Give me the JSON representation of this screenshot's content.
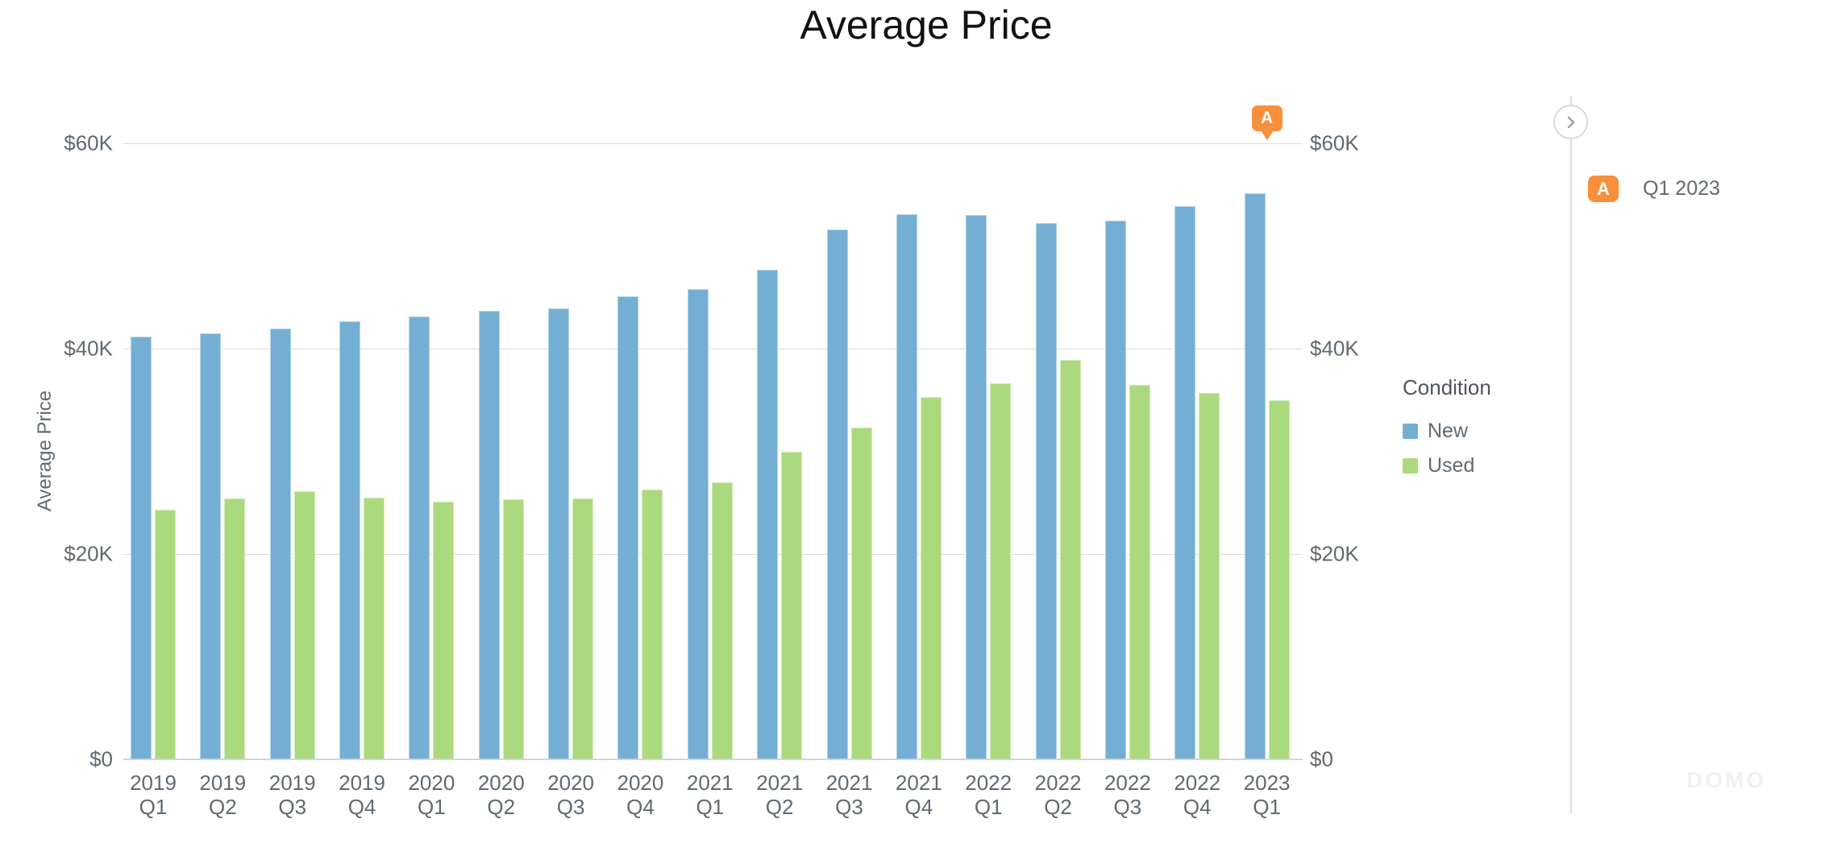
{
  "title": "Average Price",
  "colors": {
    "new_bar": "#74afd3",
    "used_bar": "#abda7e",
    "annotation_accent": "#f78f3d",
    "gridline": "#dcdcdc",
    "axis_text": "#5f6a73"
  },
  "chart_data": {
    "type": "bar",
    "title": "Average Price",
    "xlabel": "",
    "ylabel": "Average Price",
    "ylim": [
      0,
      60000
    ],
    "grid": true,
    "legend_position": "right",
    "categories": [
      "2019 Q1",
      "2019 Q2",
      "2019 Q3",
      "2019 Q4",
      "2020 Q1",
      "2020 Q2",
      "2020 Q3",
      "2020 Q4",
      "2021 Q1",
      "2021 Q2",
      "2021 Q3",
      "2021 Q4",
      "2022 Q1",
      "2022 Q2",
      "2022 Q3",
      "2022 Q4",
      "2023 Q1"
    ],
    "series": [
      {
        "name": "New",
        "color": "#74afd3",
        "values": [
          41200,
          41500,
          42000,
          42700,
          43100,
          43700,
          43900,
          45100,
          45800,
          47700,
          51600,
          53100,
          53000,
          52200,
          52500,
          53900,
          55100
        ]
      },
      {
        "name": "Used",
        "color": "#abda7e",
        "values": [
          24300,
          25400,
          26100,
          25500,
          25100,
          25300,
          25400,
          26300,
          27000,
          30000,
          32300,
          35300,
          36600,
          38900,
          36500,
          35700,
          35000
        ]
      }
    ],
    "y_ticks": [
      {
        "label": "$60K",
        "value": 60000
      },
      {
        "label": "$40K",
        "value": 40000
      },
      {
        "label": "$20K",
        "value": 20000
      },
      {
        "label": "$0",
        "value": 0
      }
    ]
  },
  "legend": {
    "title": "Condition",
    "items": [
      {
        "label": "New",
        "color": "#74afd3"
      },
      {
        "label": "Used",
        "color": "#abda7e"
      }
    ]
  },
  "annotation_marker": {
    "badge": "A",
    "color": "#f78f3d",
    "category": "2023 Q1"
  },
  "annotations_panel": {
    "expander_icon": "chevron-right",
    "items": [
      {
        "badge": "A",
        "color": "#f78f3d",
        "label": "Q1 2023"
      }
    ]
  },
  "watermark": "DOMO"
}
